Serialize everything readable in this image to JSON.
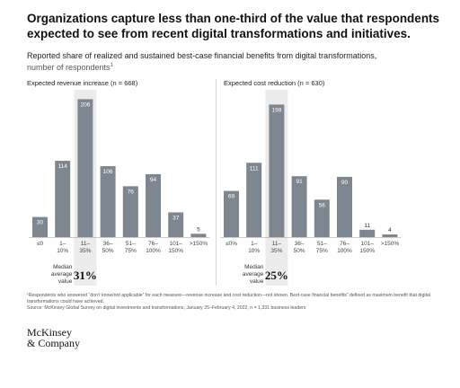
{
  "header": {
    "title": "Organizations capture less than one-third of the value that respondents expected to see from recent digital transformations and initiatives.",
    "subtitle": "Reported share of realized and sustained best-case financial benefits from digital transformations,",
    "unit_label": "number of respondents",
    "unit_superscript": "1"
  },
  "chart_data": [
    {
      "type": "bar",
      "title": "Expected revenue increase (n = 668)",
      "categories": [
        "≤0",
        "1–\n10%",
        "11–\n35%",
        "36–\n50%",
        "51–\n75%",
        "76–\n100%",
        "101–\n150%",
        ">150%"
      ],
      "values": [
        30,
        114,
        206,
        106,
        76,
        94,
        37,
        5
      ],
      "highlight_index": 2,
      "highlight_color": "#ececec",
      "bar_color": "#7e878f",
      "ylim": [
        0,
        220
      ],
      "median_label": "Median\naverage\nvalue",
      "median_value": "31%"
    },
    {
      "type": "bar",
      "title": "Expected cost reduction (n = 630)",
      "categories": [
        "≤0%",
        "1–\n10%",
        "11–\n35%",
        "36–\n50%",
        "51–\n75%",
        "76–\n100%",
        "101–\n150%",
        ">150%"
      ],
      "values": [
        69,
        111,
        198,
        91,
        56,
        90,
        11,
        4
      ],
      "highlight_index": 2,
      "highlight_color": "#ececec",
      "bar_color": "#7e878f",
      "ylim": [
        0,
        220
      ],
      "median_label": "Median\naverage\nvalue",
      "median_value": "25%"
    }
  ],
  "footnote": {
    "note": "¹Respondents who answered “don’t know/not applicable” for each measure—revenue increase and cost reduction—not shown. Best-case financial benefits” defined as maximum benefit that digital transformations could have achieved.",
    "source": "Source: McKinsey Global Survey on digital investments and transformations, January 25–February 4, 2022, n = 1,331 business leaders"
  },
  "brand": {
    "line1": "McKinsey",
    "line2": "& Company"
  }
}
